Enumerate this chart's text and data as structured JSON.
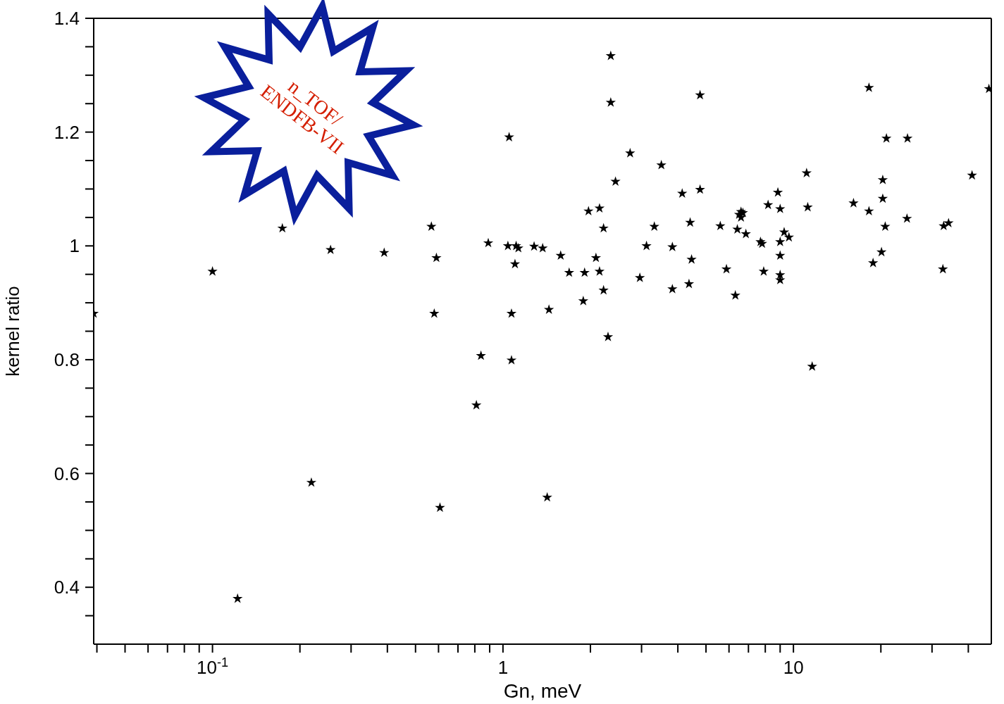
{
  "chart_data": {
    "type": "scatter",
    "xlabel": "Gn, meV",
    "ylabel": "kernel ratio",
    "log": "x",
    "grid": false,
    "marker": "star",
    "legend": false,
    "annotations": [
      "n_TOF/\nENDFB-VII"
    ],
    "xlim": [
      0.039,
      48
    ],
    "ylim": [
      0.3,
      1.4
    ],
    "xticks": [
      {
        "value": 0.04,
        "label": null
      },
      {
        "value": 0.05,
        "label": null
      },
      {
        "value": 0.06,
        "label": null
      },
      {
        "value": 0.07,
        "label": null
      },
      {
        "value": 0.08,
        "label": null
      },
      {
        "value": 0.09,
        "label": null
      },
      {
        "value": 0.1,
        "label": "10$^{-1}$"
      },
      {
        "value": 0.2,
        "label": null
      },
      {
        "value": 0.3,
        "label": null
      },
      {
        "value": 0.4,
        "label": null
      },
      {
        "value": 0.5,
        "label": null
      },
      {
        "value": 0.6,
        "label": null
      },
      {
        "value": 0.7,
        "label": null
      },
      {
        "value": 0.8,
        "label": null
      },
      {
        "value": 0.9,
        "label": null
      },
      1,
      {
        "value": 2,
        "label": null
      },
      {
        "value": 3,
        "label": null
      },
      {
        "value": 4,
        "label": null
      },
      {
        "value": 5,
        "label": null
      },
      {
        "value": 6,
        "label": null
      },
      {
        "value": 7,
        "label": null
      },
      {
        "value": 8,
        "label": null
      },
      {
        "value": 9,
        "label": null
      },
      10,
      {
        "value": 20,
        "label": null
      },
      {
        "value": 30,
        "label": null
      },
      {
        "value": 40,
        "label": null
      }
    ],
    "yticks": [
      {
        "value": 0.35,
        "label": null
      },
      0.4,
      {
        "value": 0.45,
        "label": null
      },
      {
        "value": 0.5,
        "label": null
      },
      {
        "value": 0.55,
        "label": null
      },
      0.6,
      {
        "value": 0.65,
        "label": null
      },
      {
        "value": 0.7,
        "label": null
      },
      {
        "value": 0.75,
        "label": null
      },
      0.8,
      {
        "value": 0.85,
        "label": null
      },
      {
        "value": 0.9,
        "label": null
      },
      {
        "value": 0.95,
        "label": null
      },
      1,
      {
        "value": 1.05,
        "label": null
      },
      {
        "value": 1.1,
        "label": null
      },
      {
        "value": 1.15,
        "label": null
      },
      1.2,
      {
        "value": 1.25,
        "label": null
      },
      {
        "value": 1.3,
        "label": null
      },
      {
        "value": 1.35,
        "label": null
      },
      1.4
    ],
    "series": [
      {
        "color": "#000000",
        "x": [
          0.039,
          0.1,
          0.122,
          0.174,
          0.219,
          0.255,
          0.39,
          0.567,
          0.59,
          0.58,
          0.607,
          0.81,
          0.84,
          0.89,
          1.05,
          1.04,
          1.07,
          1.07,
          1.1,
          1.11,
          1.13,
          1.28,
          1.37,
          1.44,
          1.42,
          1.58,
          1.69,
          1.89,
          1.91,
          1.97,
          2.09,
          2.15,
          2.15,
          2.22,
          2.22,
          2.3,
          2.35,
          2.35,
          2.44,
          2.74,
          2.96,
          3.12,
          3.32,
          3.51,
          3.83,
          3.83,
          4.14,
          4.37,
          4.41,
          4.46,
          4.77,
          4.77,
          5.6,
          5.88,
          6.31,
          6.41,
          6.5,
          6.6,
          6.7,
          6.6,
          6.86,
          7.7,
          7.8,
          7.9,
          8.18,
          8.84,
          9.0,
          9.0,
          9.0,
          9.0,
          9.0,
          9.29,
          9.65,
          11.1,
          11.2,
          11.6,
          16.1,
          18.2,
          18.2,
          18.8,
          20.1,
          20.3,
          20.3,
          20.7,
          20.9,
          24.6,
          24.7,
          32.7,
          32.9,
          34.2,
          41.2,
          47.1
        ],
        "values": [
          0.881,
          0.955,
          0.38,
          1.031,
          0.584,
          0.993,
          0.988,
          1.034,
          0.979,
          0.881,
          0.54,
          0.72,
          0.807,
          1.005,
          1.191,
          1.0,
          0.881,
          0.799,
          0.968,
          1.0,
          0.996,
          0.999,
          0.996,
          0.888,
          0.558,
          0.983,
          0.953,
          0.903,
          0.953,
          1.061,
          0.979,
          1.066,
          0.955,
          0.922,
          1.031,
          0.84,
          1.334,
          1.252,
          1.113,
          1.163,
          0.944,
          1.0,
          1.034,
          1.142,
          0.998,
          0.924,
          1.092,
          0.933,
          1.041,
          0.976,
          1.099,
          1.265,
          1.035,
          0.959,
          0.913,
          1.029,
          1.055,
          1.06,
          1.058,
          1.05,
          1.021,
          1.007,
          1.004,
          0.955,
          1.072,
          1.094,
          1.065,
          0.983,
          1.007,
          0.949,
          0.94,
          1.024,
          1.015,
          1.128,
          1.068,
          0.788,
          1.075,
          1.278,
          1.061,
          0.97,
          0.989,
          1.116,
          1.083,
          1.034,
          1.189,
          1.048,
          1.189,
          0.959,
          1.035,
          1.04,
          1.124,
          1.276
        ]
      }
    ]
  }
}
